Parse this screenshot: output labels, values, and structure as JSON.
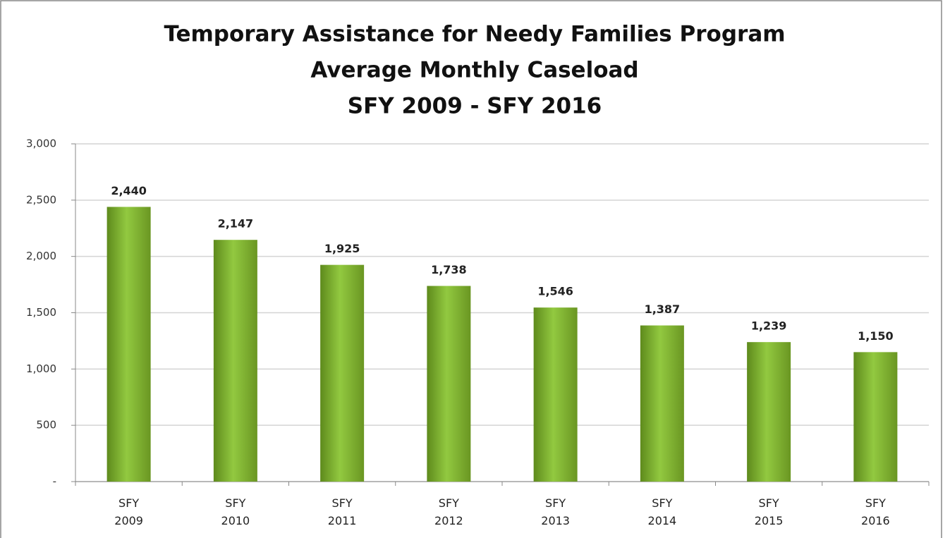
{
  "chart_data": {
    "type": "bar",
    "title": [
      "Temporary Assistance for Needy Families Program",
      "Average Monthly Caseload",
      "SFY 2009 - SFY 2016"
    ],
    "categories": [
      "SFY 2009",
      "SFY 2010",
      "SFY 2011",
      "SFY 2012",
      "SFY 2013",
      "SFY 2014",
      "SFY 2015",
      "SFY 2016"
    ],
    "values": [
      2440,
      2147,
      1925,
      1738,
      1546,
      1387,
      1239,
      1150
    ],
    "value_labels": [
      "2,440",
      "2,147",
      "1,925",
      "1,738",
      "1,546",
      "1,387",
      "1,239",
      "1,150"
    ],
    "color": "#92c940",
    "ylim": [
      0,
      3000
    ],
    "yticks": [
      {
        "value": 0,
        "label": "-"
      },
      500,
      {
        "value": 1000,
        "label": "1,000"
      },
      {
        "value": 1500,
        "label": "1,500"
      },
      {
        "value": 2000,
        "label": "2,000"
      },
      {
        "value": 2500,
        "label": "2,500"
      },
      {
        "value": 3000,
        "label": "3,000"
      }
    ],
    "grid": true
  }
}
